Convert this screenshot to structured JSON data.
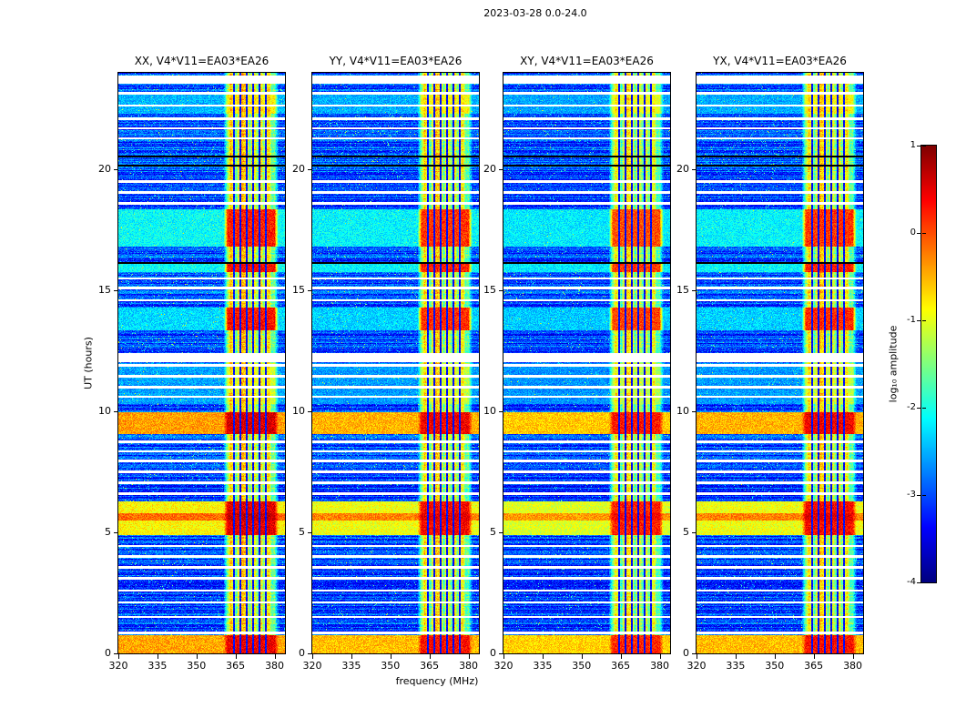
{
  "figure": {
    "title": "2023-03-28 0.0-24.0"
  },
  "chart_data": {
    "type": "heatmap",
    "title": "2023-03-28 0.0-24.0",
    "xlabel": "frequency (MHz)",
    "ylabel": "UT (hours)",
    "panels": [
      {
        "title": "XX, V4*V11=EA03*EA26",
        "seed": 101,
        "gain": 1.0
      },
      {
        "title": "YY, V4*V11=EA03*EA26",
        "seed": 202,
        "gain": 0.97
      },
      {
        "title": "XY, V4*V11=EA03*EA26",
        "seed": 303,
        "gain": 0.94
      },
      {
        "title": "YX, V4*V11=EA03*EA26",
        "seed": 404,
        "gain": 0.97
      }
    ],
    "x_range": [
      320,
      384
    ],
    "x_ticks": [
      320,
      335,
      350,
      365,
      380
    ],
    "y_range": [
      0,
      24
    ],
    "y_ticks": [
      0,
      5,
      10,
      15,
      20
    ],
    "colorbar": {
      "label": "log₁₀ amplitude",
      "range": [
        -4,
        1
      ],
      "ticks": [
        1,
        0,
        -1,
        -2,
        -3,
        -4
      ],
      "colormap": "jet"
    },
    "features": {
      "background_mean": -3.0,
      "row_jitter": 0.4,
      "pixel_jitter": 0.35,
      "speckle_prob": 0.03,
      "speckle_boost": 1.3,
      "rfi_band": {
        "f0": 360.5,
        "f1": 381.5,
        "base": -2.0,
        "stripe_amp": 1.6
      },
      "rfi_dark_freqs": [
        364.3,
        366.8,
        369.3,
        371.8,
        374.3,
        376.8
      ],
      "events": [
        {
          "t0": 0.0,
          "t1": 0.75,
          "level": -0.45,
          "rfi_level": 0.45
        },
        {
          "t0": 4.9,
          "t1": 6.3,
          "level": -0.85,
          "rfi_level": 0.5
        },
        {
          "t0": 5.5,
          "t1": 5.8,
          "level": -0.15,
          "rfi_level": 0.6
        },
        {
          "t0": 9.05,
          "t1": 9.95,
          "level": -0.4,
          "rfi_level": 0.55
        },
        {
          "t0": 10.3,
          "t1": 12.0,
          "level": -2.6,
          "rfi_level": -1.1
        },
        {
          "t0": 13.35,
          "t1": 14.3,
          "level": -2.3,
          "rfi_level": 0.3
        },
        {
          "t0": 15.75,
          "t1": 16.1,
          "level": -2.1,
          "rfi_level": 0.35
        },
        {
          "t0": 16.8,
          "t1": 18.35,
          "level": -2.1,
          "rfi_level": 0.25
        },
        {
          "t0": 22.3,
          "t1": 23.2,
          "level": -2.5,
          "rfi_level": -0.8
        }
      ],
      "white_lines": [
        0.85,
        1.5,
        2.1,
        2.6,
        3.1,
        3.55,
        4.0,
        4.45,
        6.6,
        7.05,
        7.5,
        7.95,
        8.35,
        8.75,
        10.6,
        11.0,
        11.45,
        11.9,
        12.35,
        14.6,
        15.1,
        15.5,
        18.6,
        19.05,
        19.5,
        21.3,
        21.7,
        22.1,
        22.65,
        23.15
      ],
      "white_bands": [
        {
          "t0": 12.05,
          "t1": 12.3
        },
        {
          "t0": 23.55,
          "t1": 23.9
        }
      ],
      "black_lines": [
        16.15,
        20.15,
        20.55
      ]
    }
  }
}
